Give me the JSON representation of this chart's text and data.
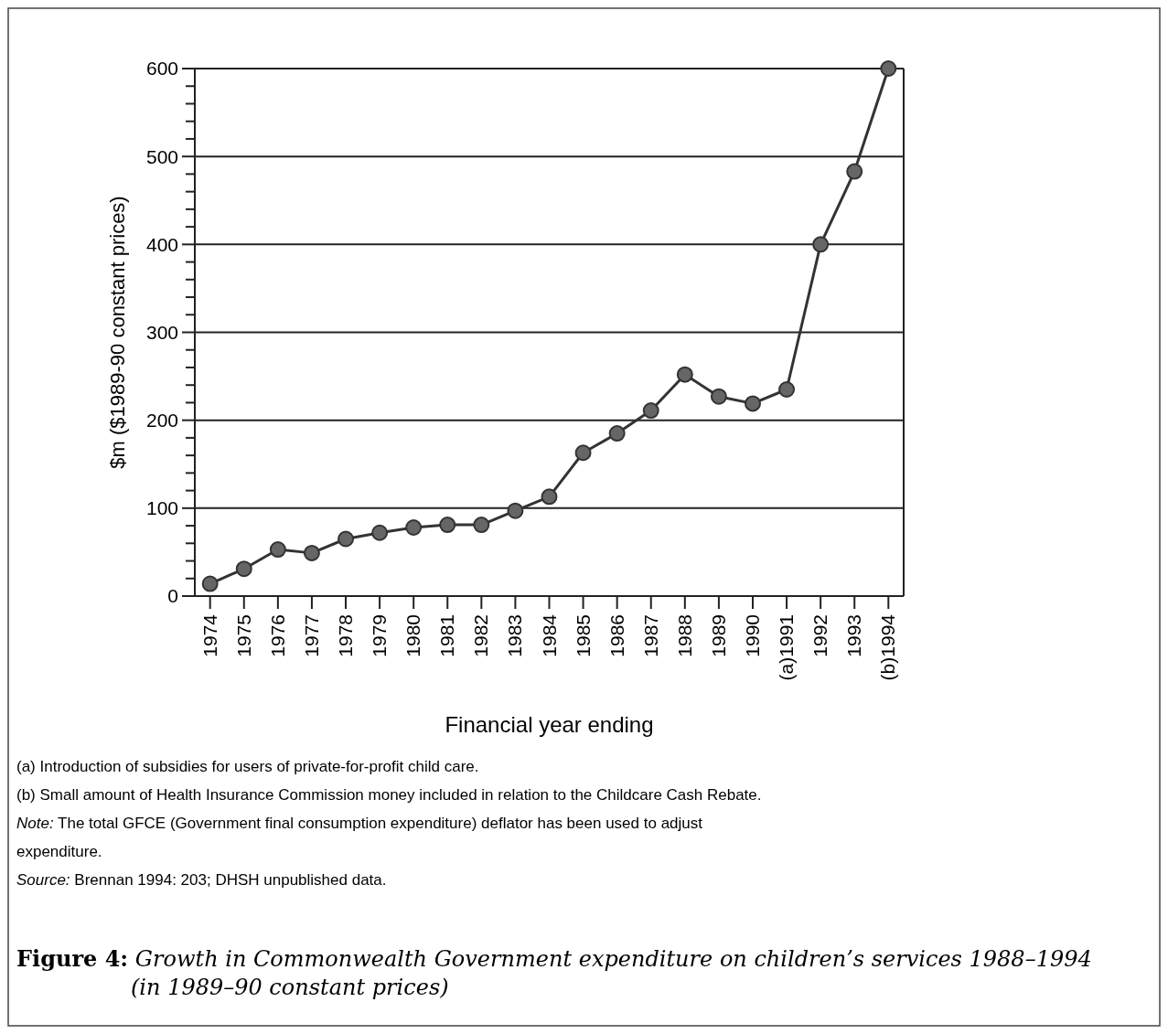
{
  "chart_data": {
    "type": "line",
    "title": "Figure 4: Growth in Commonwealth Government expenditure on children’s services 1988–1994 (in 1989–90 constant prices)",
    "xlabel": "Financial year ending",
    "ylabel": "$m ($1989-90 constant prices)",
    "categories": [
      "1974",
      "1975",
      "1976",
      "1977",
      "1978",
      "1979",
      "1980",
      "1981",
      "1982",
      "1983",
      "1984",
      "1985",
      "1986",
      "1987",
      "1988",
      "1989",
      "1990",
      "(a)1991",
      "1992",
      "1993",
      "(b)1994"
    ],
    "series": [
      {
        "color": "#333333",
        "values": [
          14,
          31,
          53,
          49,
          65,
          72,
          78,
          81,
          81,
          97,
          113,
          163,
          185,
          211,
          252,
          227,
          219,
          235,
          400,
          483,
          600
        ]
      }
    ],
    "ylim": [
      0,
      600
    ],
    "yticks": [
      0,
      {
        "value": 20,
        "label": null
      },
      {
        "value": 40,
        "label": null
      },
      {
        "value": 60,
        "label": null
      },
      {
        "value": 80,
        "label": null
      },
      100,
      {
        "value": 120,
        "label": null
      },
      {
        "value": 140,
        "label": null
      },
      {
        "value": 160,
        "label": null
      },
      {
        "value": 180,
        "label": null
      },
      200,
      {
        "value": 220,
        "label": null
      },
      {
        "value": 240,
        "label": null
      },
      {
        "value": 260,
        "label": null
      },
      {
        "value": 280,
        "label": null
      },
      300,
      {
        "value": 320,
        "label": null
      },
      {
        "value": 340,
        "label": null
      },
      {
        "value": 360,
        "label": null
      },
      {
        "value": 380,
        "label": null
      },
      400,
      {
        "value": 420,
        "label": null
      },
      {
        "value": 440,
        "label": null
      },
      {
        "value": 460,
        "label": null
      },
      {
        "value": 480,
        "label": null
      },
      500,
      {
        "value": 520,
        "label": null
      },
      {
        "value": 540,
        "label": null
      },
      {
        "value": 560,
        "label": null
      },
      {
        "value": 580,
        "label": null
      },
      600
    ],
    "grid": "y",
    "marker": "circle",
    "line_style": "solid",
    "annotations": [
      "(a)  Introduction of subsidies for users of private-for-profit child care.",
      "(b)  Small amount of Health Insurance Commission money included in relation to the Childcare Cash Rebate.",
      "Note: The total GFCE (Government final consumption expenditure) deflator has been used to adjust expenditure.",
      "Source: Brennan 1994: 203; DHSH unpublished data."
    ]
  }
}
